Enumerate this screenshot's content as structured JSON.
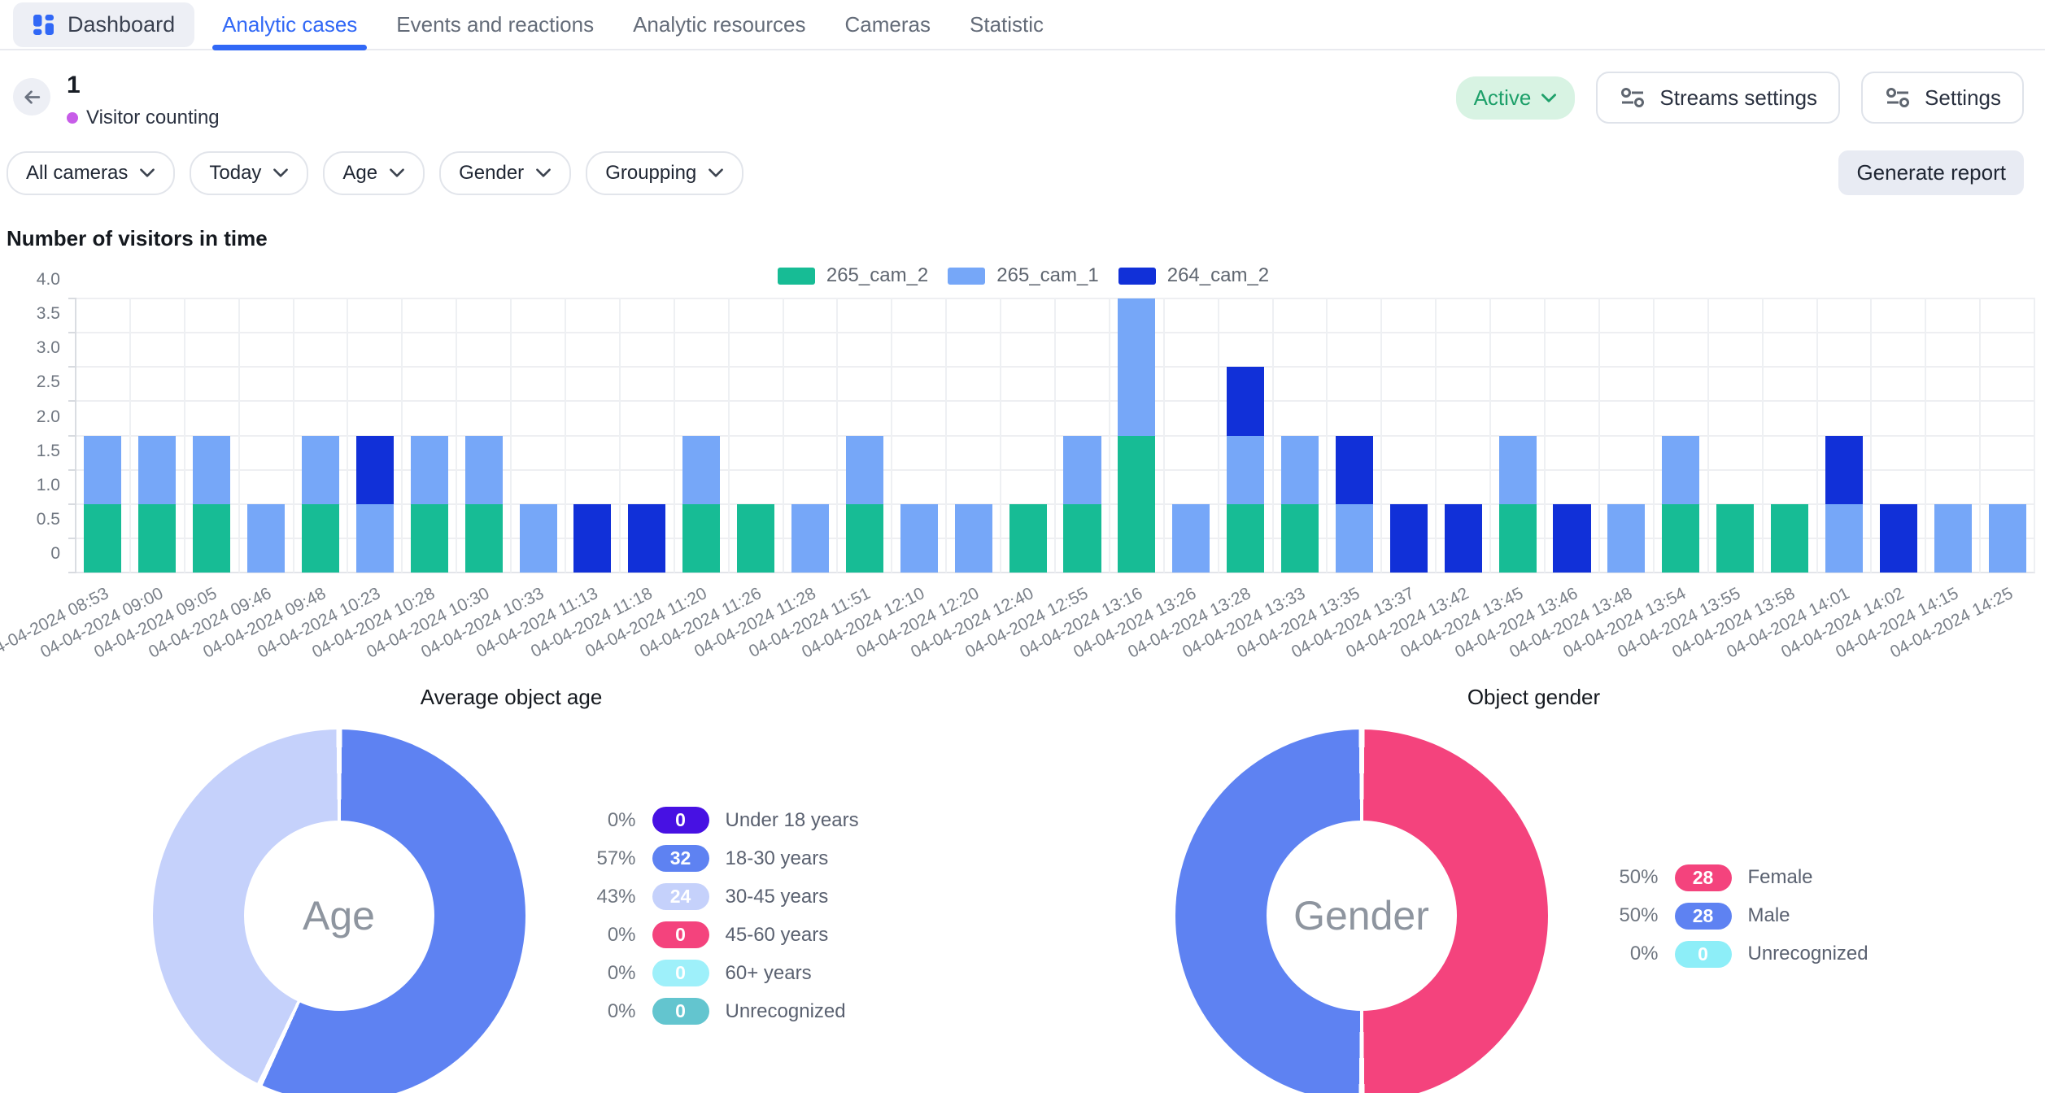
{
  "nav": {
    "dashboard_label": "Dashboard",
    "tabs": [
      {
        "label": "Analytic cases",
        "active": true
      },
      {
        "label": "Events and reactions",
        "active": false
      },
      {
        "label": "Analytic resources",
        "active": false
      },
      {
        "label": "Cameras",
        "active": false
      },
      {
        "label": "Statistic",
        "active": false
      }
    ]
  },
  "header": {
    "title": "1",
    "subtitle": "Visitor counting",
    "case_dot_color": "#c75ce8",
    "status_label": "Active",
    "status_colors": {
      "background": "#d8f3e3",
      "text": "#1ea06a"
    },
    "streams_settings_label": "Streams settings",
    "settings_label": "Settings"
  },
  "filters": [
    "All cameras",
    "Today",
    "Age",
    "Gender",
    "Groupping"
  ],
  "toolbar": {
    "generate_report_label": "Generate report"
  },
  "chart_data": [
    {
      "type": "bar",
      "stacked": true,
      "title": "Number of visitors in time",
      "legend_position": "top",
      "grid": true,
      "ylim": [
        0,
        4
      ],
      "yticks": [
        "0",
        "0.5",
        "1.0",
        "1.5",
        "2.0",
        "2.5",
        "3.0",
        "3.5",
        "4.0"
      ],
      "categories": [
        "04-04-2024 08:53",
        "04-04-2024 09:00",
        "04-04-2024 09:05",
        "04-04-2024 09:46",
        "04-04-2024 09:48",
        "04-04-2024 10:23",
        "04-04-2024 10:28",
        "04-04-2024 10:30",
        "04-04-2024 10:33",
        "04-04-2024 11:13",
        "04-04-2024 11:18",
        "04-04-2024 11:20",
        "04-04-2024 11:26",
        "04-04-2024 11:28",
        "04-04-2024 11:51",
        "04-04-2024 12:10",
        "04-04-2024 12:20",
        "04-04-2024 12:40",
        "04-04-2024 12:55",
        "04-04-2024 13:16",
        "04-04-2024 13:26",
        "04-04-2024 13:28",
        "04-04-2024 13:33",
        "04-04-2024 13:35",
        "04-04-2024 13:37",
        "04-04-2024 13:42",
        "04-04-2024 13:45",
        "04-04-2024 13:46",
        "04-04-2024 13:48",
        "04-04-2024 13:54",
        "04-04-2024 13:55",
        "04-04-2024 13:58",
        "04-04-2024 14:01",
        "04-04-2024 14:02",
        "04-04-2024 14:15",
        "04-04-2024 14:25"
      ],
      "series": [
        {
          "name": "265_cam_2",
          "color": "#17bc95",
          "values": [
            1,
            1,
            1,
            0,
            1,
            0,
            1,
            1,
            0,
            0,
            0,
            1,
            1,
            0,
            1,
            0,
            0,
            1,
            1,
            2,
            0,
            1,
            1,
            0,
            0,
            0,
            1,
            0,
            0,
            1,
            1,
            1,
            0,
            0,
            0,
            0
          ]
        },
        {
          "name": "265_cam_1",
          "color": "#76a7f8",
          "values": [
            1,
            1,
            1,
            1,
            1,
            1,
            1,
            1,
            1,
            0,
            0,
            1,
            0,
            1,
            1,
            1,
            1,
            0,
            1,
            2,
            1,
            1,
            1,
            1,
            0,
            0,
            1,
            0,
            1,
            1,
            0,
            0,
            1,
            0,
            1,
            1
          ]
        },
        {
          "name": "264_cam_2",
          "color": "#1130d8",
          "values": [
            0,
            0,
            0,
            0,
            0,
            1,
            0,
            0,
            0,
            1,
            1,
            0,
            0,
            0,
            0,
            0,
            0,
            0,
            0,
            0,
            0,
            1,
            0,
            1,
            1,
            1,
            0,
            1,
            0,
            0,
            0,
            0,
            1,
            1,
            0,
            0
          ]
        }
      ]
    },
    {
      "type": "pie",
      "title": "Average object age",
      "center_label": "Age",
      "slices": [
        {
          "label": "Under 18 years",
          "percent": 0,
          "percent_label": "0%",
          "count": "0",
          "color": "#4711e3"
        },
        {
          "label": "18-30 years",
          "percent": 57,
          "percent_label": "57%",
          "count": "32",
          "color": "#5e82f2"
        },
        {
          "label": "30-45 years",
          "percent": 43,
          "percent_label": "43%",
          "count": "24",
          "color": "#c5d1fb"
        },
        {
          "label": "45-60 years",
          "percent": 0,
          "percent_label": "0%",
          "count": "0",
          "color": "#f4437d"
        },
        {
          "label": "60+ years",
          "percent": 0,
          "percent_label": "0%",
          "count": "0",
          "color": "#9ef0fa"
        },
        {
          "label": "Unrecognized",
          "percent": 0,
          "percent_label": "0%",
          "count": "0",
          "color": "#63c5cf"
        }
      ]
    },
    {
      "type": "pie",
      "title": "Object gender",
      "center_label": "Gender",
      "slices": [
        {
          "label": "Female",
          "percent": 50,
          "percent_label": "50%",
          "count": "28",
          "color": "#f4437d"
        },
        {
          "label": "Male",
          "percent": 50,
          "percent_label": "50%",
          "count": "28",
          "color": "#5e82f2"
        },
        {
          "label": "Unrecognized",
          "percent": 0,
          "percent_label": "0%",
          "count": "0",
          "color": "#8deef8"
        }
      ]
    }
  ]
}
